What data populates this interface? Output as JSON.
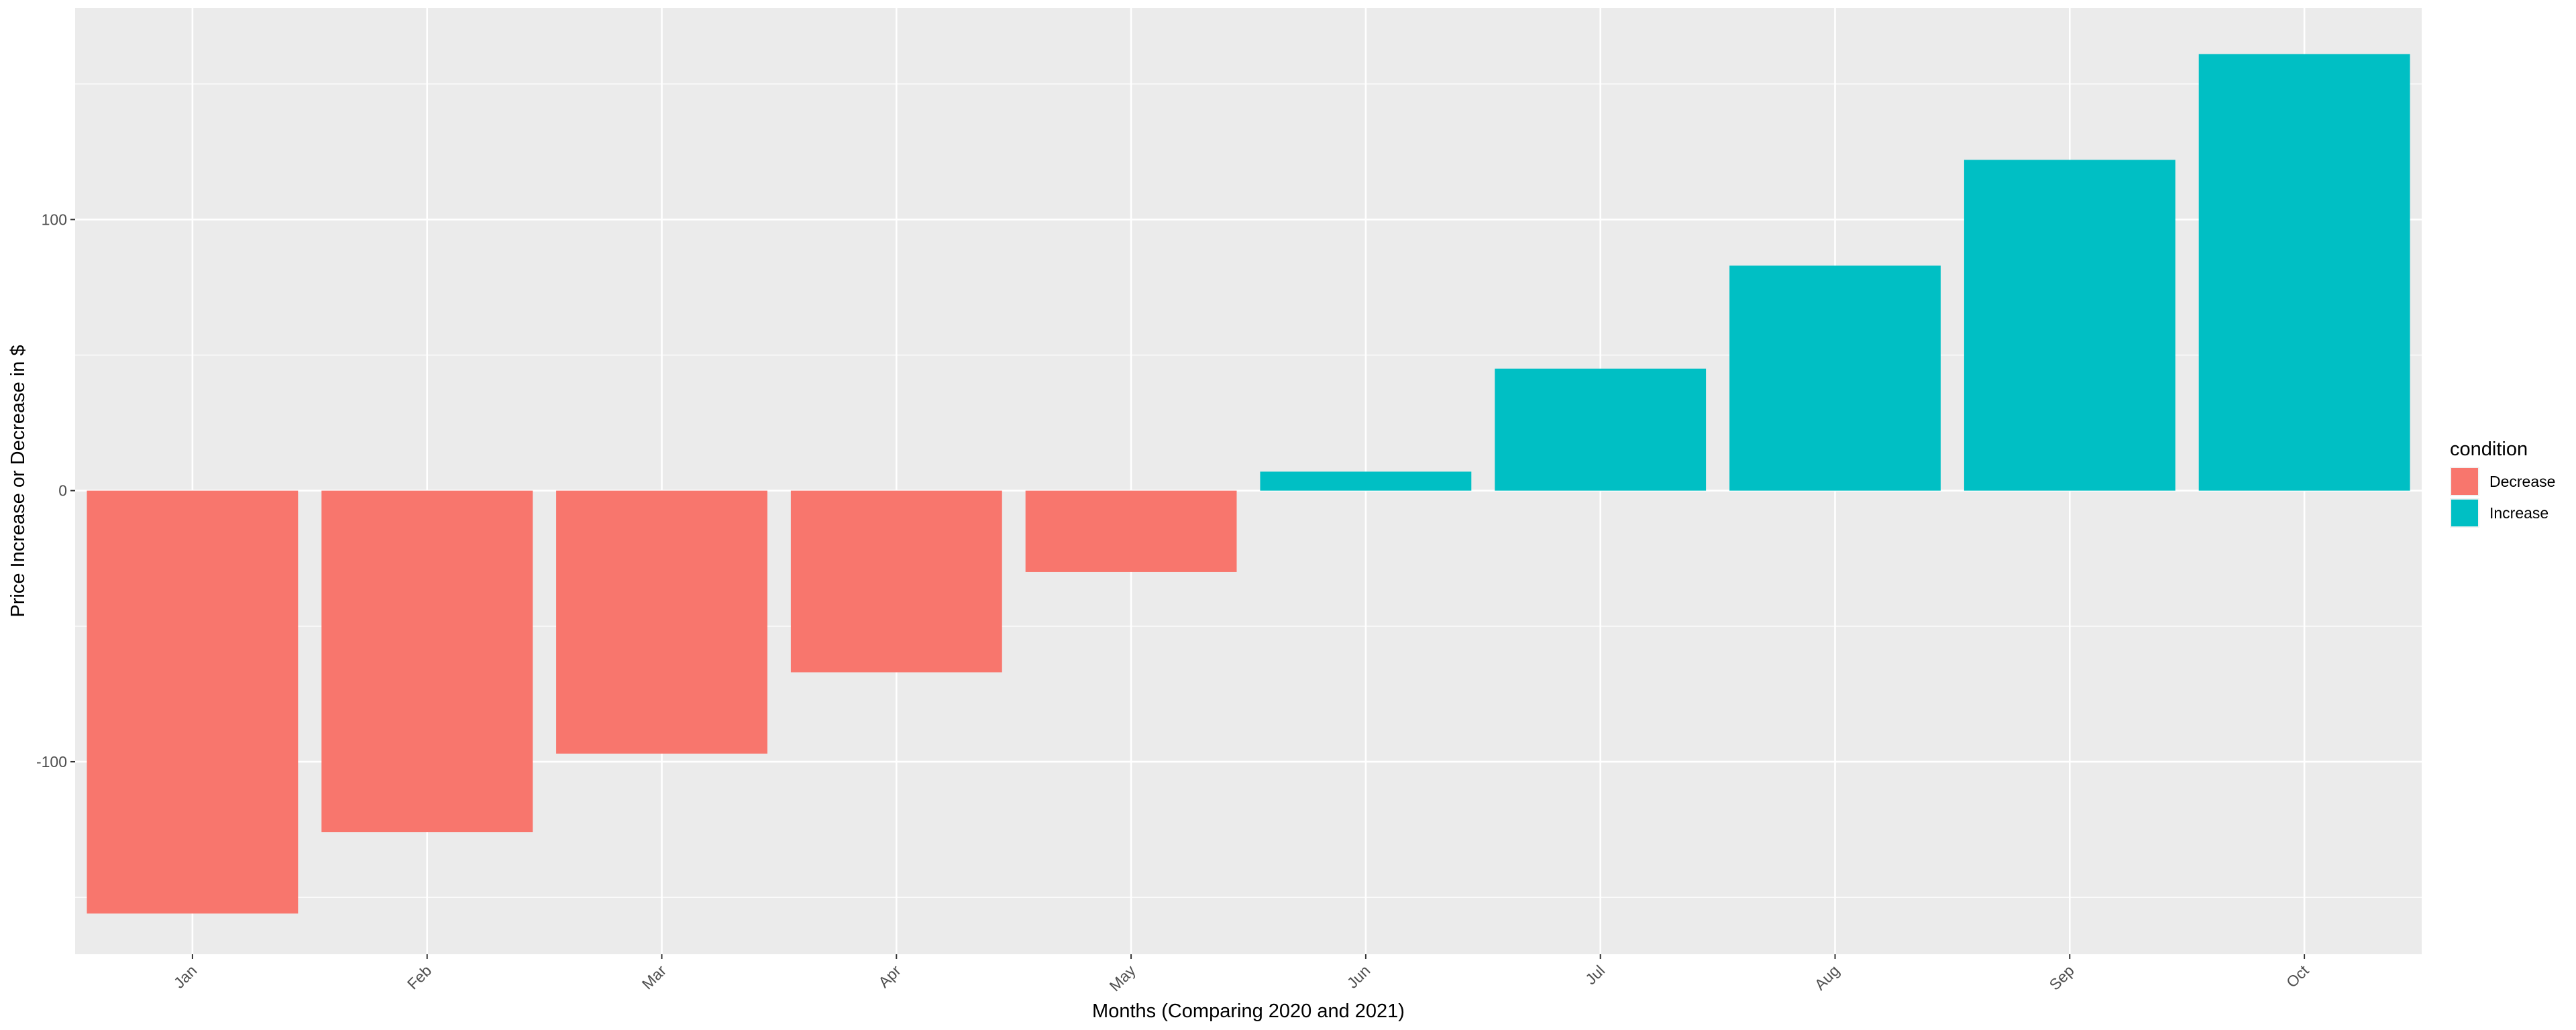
{
  "chart_data": {
    "type": "bar",
    "title": "",
    "xlabel": "Months (Comparing 2020 and 2021)",
    "ylabel": "Price Increase or Decrease in $",
    "categories": [
      "Jan",
      "Feb",
      "Mar",
      "Apr",
      "May",
      "Jun",
      "Jul",
      "Aug",
      "Sep",
      "Oct"
    ],
    "values": [
      -156,
      -126,
      -97,
      -67,
      -30,
      7,
      45,
      83,
      122,
      161
    ],
    "condition": [
      "Decrease",
      "Decrease",
      "Decrease",
      "Decrease",
      "Decrease",
      "Increase",
      "Increase",
      "Increase",
      "Increase",
      "Increase"
    ],
    "ylim": [
      -171,
      178
    ],
    "yticks": [
      -100,
      0,
      100
    ],
    "ytick_labels": [
      "-100",
      "0",
      "100"
    ],
    "grid": true,
    "legend": {
      "title": "condition",
      "placement": "right",
      "entries": [
        {
          "label": "Decrease",
          "color": "#F8766D"
        },
        {
          "label": "Increase",
          "color": "#00BFC4"
        }
      ]
    },
    "colors": {
      "Decrease": "#F8766D",
      "Increase": "#00BFC4",
      "panel_background": "#EBEBEB",
      "grid_line": "#FFFFFF",
      "tick_text": "#4D4D4D",
      "axis_title": "#000000"
    }
  }
}
